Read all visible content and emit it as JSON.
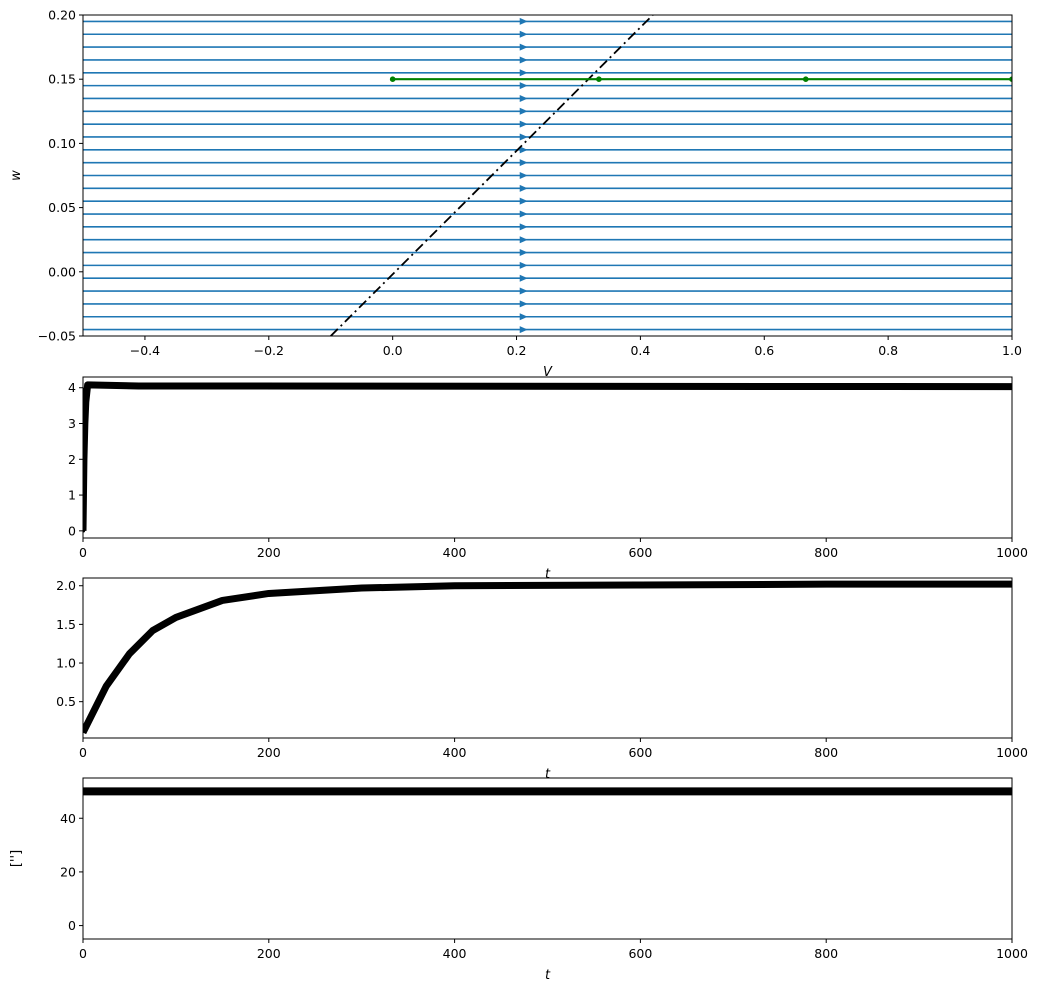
{
  "chart_data": [
    {
      "type": "line",
      "subtype": "phase-portrait-streamplot",
      "xlabel": "V",
      "ylabel": "w",
      "xlim": [
        -0.5,
        1.0
      ],
      "ylim": [
        -0.05,
        0.2
      ],
      "xticks": [
        "−0.4",
        "−0.2",
        "0.0",
        "0.2",
        "0.4",
        "0.6",
        "0.8",
        "1.0"
      ],
      "yticks": [
        "−0.05",
        "0.00",
        "0.05",
        "0.10",
        "0.15",
        "0.20"
      ],
      "grid": false,
      "streamlines": {
        "direction": "+x",
        "w_values": [
          -0.045,
          -0.035,
          -0.025,
          -0.015,
          -0.005,
          0.005,
          0.015,
          0.025,
          0.035,
          0.045,
          0.055,
          0.065,
          0.075,
          0.085,
          0.095,
          0.105,
          0.115,
          0.125,
          0.135,
          0.145,
          0.155,
          0.165,
          0.175,
          0.185,
          0.195
        ],
        "arrow_V": 0.21,
        "color": "#1f77b4"
      },
      "series": [
        {
          "style": "dash-dot",
          "color": "#000000",
          "x": [
            -0.1,
            0.42
          ],
          "y": [
            -0.05,
            0.2
          ]
        },
        {
          "style": "line-with-markers",
          "color": "#008000",
          "x": [
            0.0,
            0.333,
            0.667,
            1.0
          ],
          "y": [
            0.15,
            0.15,
            0.15,
            0.15
          ]
        }
      ]
    },
    {
      "type": "line",
      "xlabel": "t",
      "ylabel": "",
      "xlim": [
        0,
        1000
      ],
      "ylim": [
        -0.2,
        4.3
      ],
      "xticks": [
        "0",
        "200",
        "400",
        "600",
        "800",
        "1000"
      ],
      "yticks": [
        "0",
        "1",
        "2",
        "3",
        "4"
      ],
      "series": [
        {
          "color": "#000000",
          "x": [
            0,
            0.5,
            1,
            2,
            3,
            5,
            60,
            1000
          ],
          "y": [
            0,
            1.0,
            2.0,
            3.0,
            3.6,
            4.08,
            4.05,
            4.03
          ]
        }
      ]
    },
    {
      "type": "line",
      "xlabel": "t",
      "ylabel": "",
      "xlim": [
        0,
        1000
      ],
      "ylim": [
        0.03,
        2.1
      ],
      "xticks": [
        "0",
        "200",
        "400",
        "600",
        "800",
        "1000"
      ],
      "yticks": [
        "0.5",
        "1.0",
        "1.5",
        "2.0"
      ],
      "series": [
        {
          "color": "#000000",
          "x": [
            0,
            25,
            50,
            75,
            100,
            150,
            200,
            300,
            400,
            600,
            800,
            1000
          ],
          "y": [
            0.1,
            0.7,
            1.12,
            1.42,
            1.59,
            1.81,
            1.9,
            1.97,
            2.0,
            2.01,
            2.02,
            2.02
          ]
        }
      ]
    },
    {
      "type": "line",
      "xlabel": "t",
      "ylabel": "['']",
      "xlim": [
        0,
        1000
      ],
      "ylim": [
        -5,
        55
      ],
      "xticks": [
        "0",
        "200",
        "400",
        "600",
        "800",
        "1000"
      ],
      "yticks": [
        "0",
        "20",
        "40"
      ],
      "series": [
        {
          "color": "#000000",
          "x": [
            0,
            1000
          ],
          "y": [
            50,
            50
          ]
        }
      ]
    }
  ]
}
